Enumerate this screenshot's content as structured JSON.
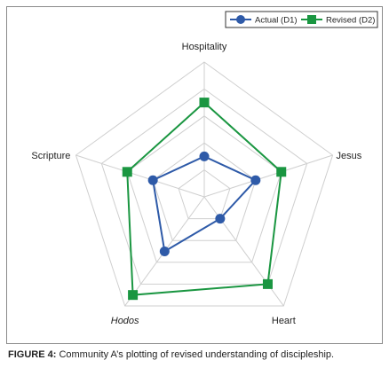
{
  "chart_data": {
    "type": "radar",
    "axes": [
      "Hospitality",
      "Jesus",
      "Heart",
      "Hodos",
      "Scripture"
    ],
    "axis_styles": [
      "normal",
      "normal",
      "normal",
      "italic",
      "normal"
    ],
    "rlim": [
      0,
      5
    ],
    "rings": 5,
    "grid": true,
    "legend_position": "top-right",
    "series": [
      {
        "name": "Actual (D1)",
        "color": "#2e5aa8",
        "marker": "circle",
        "values": [
          1.5,
          2.0,
          1.0,
          2.5,
          2.0
        ]
      },
      {
        "name": "Revised (D2)",
        "color": "#1a9641",
        "marker": "square",
        "values": [
          3.5,
          3.0,
          4.0,
          4.5,
          3.0
        ]
      }
    ]
  },
  "caption": {
    "label": "FIGURE 4:",
    "text": " Community A’s plotting of revised understanding of discipleship."
  }
}
